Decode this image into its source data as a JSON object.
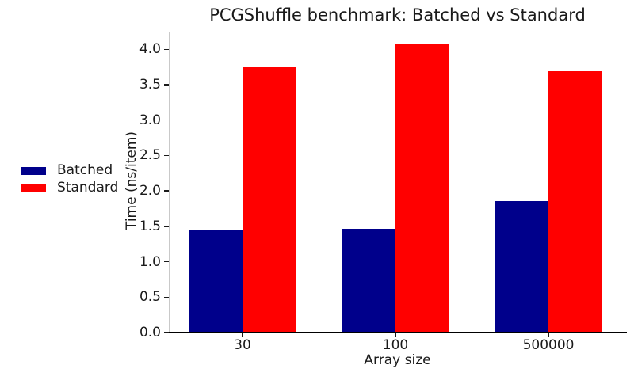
{
  "chart_data": {
    "type": "bar",
    "title": "PCGShuffle benchmark: Batched vs Standard",
    "xlabel": "Array size",
    "ylabel": "Time (ns/item)",
    "categories": [
      "30",
      "100",
      "500000"
    ],
    "series": [
      {
        "name": "Batched",
        "color": "#00008B",
        "values": [
          1.45,
          1.47,
          1.86
        ]
      },
      {
        "name": "Standard",
        "color": "#FF0000",
        "values": [
          3.76,
          4.07,
          3.69
        ]
      }
    ],
    "ylim": [
      0,
      4.25
    ],
    "yticks": [
      0.0,
      0.5,
      1.0,
      1.5,
      2.0,
      2.5,
      3.0,
      3.5,
      4.0
    ],
    "ytick_labels": [
      "0.0",
      "0.5",
      "1.0",
      "1.5",
      "2.0",
      "2.5",
      "3.0",
      "3.5",
      "4.0"
    ],
    "legend_position": "left",
    "legend_frame": false,
    "grid": false,
    "background_color": "#ffffff",
    "text_color": "#1a1a1a"
  }
}
